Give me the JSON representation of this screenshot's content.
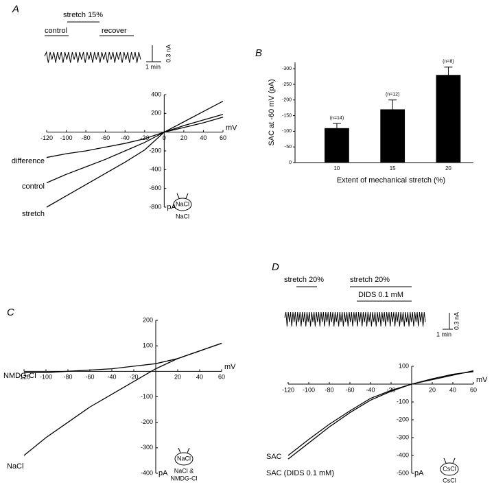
{
  "chart_data": [
    {
      "type": "line",
      "panel": "A",
      "xlabel": "mV",
      "ylabel": "pA",
      "x": [
        -120,
        -100,
        -80,
        -60,
        -40,
        -20,
        0,
        20,
        40,
        60
      ],
      "xlim": [
        -120,
        60
      ],
      "ylim": [
        -800,
        400
      ],
      "xticks": [
        -120,
        -100,
        -80,
        -60,
        -40,
        -20,
        0,
        20,
        40,
        60
      ],
      "yticks": [
        400,
        200,
        -200,
        -400,
        -600,
        -800
      ],
      "series": [
        {
          "name": "difference",
          "color": "#000000",
          "values": [
            -270,
            -230,
            -200,
            -160,
            -120,
            -70,
            0,
            50,
            100,
            160
          ]
        },
        {
          "name": "control",
          "color": "#000000",
          "values": [
            -540,
            -450,
            -370,
            -290,
            -200,
            -110,
            0,
            70,
            130,
            190
          ]
        },
        {
          "name": "stretch",
          "color": "#000000",
          "values": [
            -800,
            -680,
            -560,
            -440,
            -320,
            -190,
            0,
            110,
            220,
            330
          ]
        }
      ],
      "inset": [
        "stretch 15%",
        "control",
        "recover",
        "1 min",
        "0.3 nA"
      ],
      "icon": {
        "inner": "NaCl",
        "outer": [
          "NaCl"
        ]
      }
    },
    {
      "type": "bar",
      "panel": "B",
      "ylabel": "SAC at -60 mV (pA)",
      "xlabel": "Extent of mechanical stretch (%)",
      "categories": [
        "10",
        "15",
        "20"
      ],
      "values": [
        -110,
        -170,
        -280
      ],
      "errors": [
        15,
        30,
        25
      ],
      "annotations": [
        "(n=14)",
        "(n=12)",
        "(n=8)"
      ],
      "color": "#000000",
      "ylim": [
        0,
        -320
      ],
      "yticks": [
        0,
        -50,
        -100,
        -150,
        -200,
        -250,
        -300
      ]
    },
    {
      "type": "line",
      "panel": "C",
      "xlabel": "mV",
      "ylabel": "pA",
      "x": [
        -120,
        -100,
        -80,
        -60,
        -40,
        -20,
        0,
        20,
        40,
        60
      ],
      "xlim": [
        -120,
        60
      ],
      "ylim": [
        -400,
        200
      ],
      "xticks": [
        -120,
        -100,
        -80,
        -60,
        -40,
        -20,
        20,
        40,
        60
      ],
      "yticks": [
        200,
        100,
        -100,
        -200,
        -300,
        -400
      ],
      "series": [
        {
          "name": "NMDG-Cl",
          "color": "#000000",
          "values": [
            -5,
            -5,
            0,
            5,
            10,
            20,
            30,
            50,
            80,
            110
          ]
        },
        {
          "name": "NaCl",
          "color": "#000000",
          "values": [
            -330,
            -260,
            -200,
            -140,
            -90,
            -40,
            10,
            50,
            80,
            110
          ]
        }
      ],
      "icon": {
        "inner": "NaCl",
        "outer": [
          "NaCl &",
          "NMDG-Cl"
        ]
      }
    },
    {
      "type": "line",
      "panel": "D",
      "xlabel": "mV",
      "ylabel": "pA",
      "x": [
        -120,
        -100,
        -80,
        -60,
        -40,
        -20,
        0,
        20,
        40,
        60
      ],
      "xlim": [
        -120,
        60
      ],
      "ylim": [
        -500,
        100
      ],
      "xticks": [
        -120,
        -100,
        -80,
        -60,
        -40,
        -20,
        20,
        40,
        60
      ],
      "yticks": [
        100,
        -100,
        -200,
        -300,
        -400,
        -500
      ],
      "series": [
        {
          "name": "SAC",
          "color": "#000000",
          "values": [
            -420,
            -330,
            -240,
            -160,
            -90,
            -40,
            0,
            30,
            55,
            70
          ]
        },
        {
          "name": "SAC (DIDS 0.1 mM)",
          "color": "#000000",
          "values": [
            -400,
            -310,
            -225,
            -150,
            -80,
            -35,
            0,
            25,
            50,
            75
          ]
        }
      ],
      "inset": [
        "stretch 20%",
        "stretch 20%",
        "DIDS 0.1 mM",
        "1 min",
        "0.3 nA"
      ],
      "icon": {
        "inner": "CsCl",
        "outer": [
          "CsCl"
        ]
      }
    }
  ]
}
